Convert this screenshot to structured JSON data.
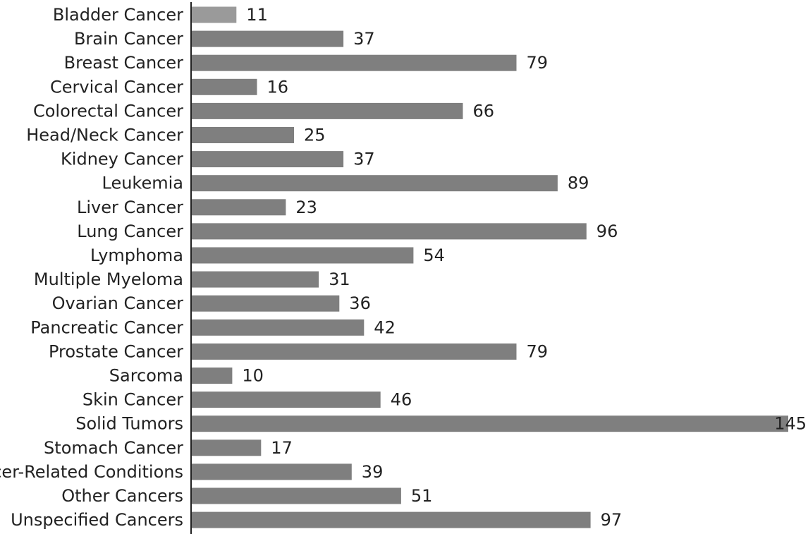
{
  "chart_data": {
    "type": "bar",
    "orientation": "horizontal",
    "title": "",
    "xlabel": "",
    "ylabel": "",
    "categories": [
      "Bladder Cancer",
      "Brain Cancer",
      "Breast Cancer",
      "Cervical Cancer",
      "Colorectal Cancer",
      "Head/Neck Cancer",
      "Kidney Cancer",
      "Leukemia",
      "Liver Cancer",
      "Lung Cancer",
      "Lymphoma",
      "Multiple Myeloma",
      "Ovarian Cancer",
      "Pancreatic Cancer",
      "Prostate Cancer",
      "Sarcoma",
      "Skin Cancer",
      "Solid Tumors",
      "Stomach Cancer",
      "Cancer-Related Conditions",
      "Other Cancers",
      "Unspecified Cancers"
    ],
    "values": [
      11,
      37,
      79,
      16,
      66,
      25,
      37,
      89,
      23,
      96,
      54,
      31,
      36,
      42,
      79,
      10,
      46,
      145,
      17,
      39,
      51,
      97
    ],
    "xlim": [
      0,
      145
    ],
    "data_labels": true,
    "grid": false,
    "legend": "none",
    "colors": {
      "bar": "#7f7f7f",
      "bar_highlight": "#9a9a9a",
      "axis": "#222222",
      "text": "#222222"
    }
  }
}
